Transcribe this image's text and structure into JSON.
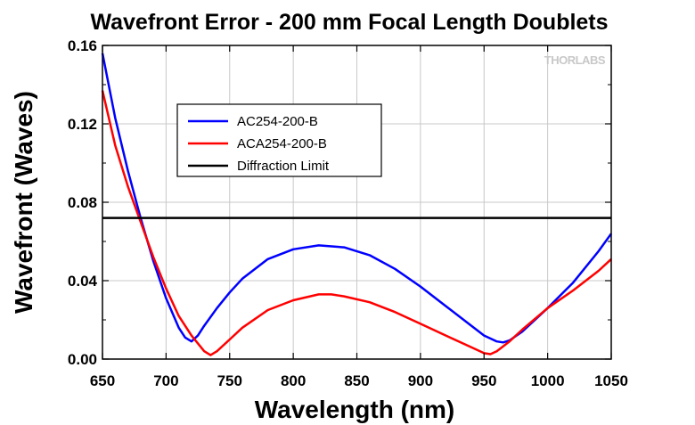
{
  "chart_data": {
    "type": "line",
    "title": "Wavefront Error - 200 mm Focal Length Doublets",
    "xlabel": "Wavelength (nm)",
    "ylabel": "Wavefront (Waves)",
    "xlim": [
      650,
      1050
    ],
    "ylim": [
      0,
      0.16
    ],
    "xticks": [
      650,
      700,
      750,
      800,
      850,
      900,
      950,
      1000,
      1050
    ],
    "yticks": [
      "0.00",
      "0.04",
      "0.08",
      "0.12",
      "0.16"
    ],
    "grid": true,
    "legend_position": "upper-left-inside",
    "watermark": "THORLABS",
    "series": [
      {
        "name": "AC254-200-B",
        "color": "#0000ff",
        "x": [
          650,
          660,
          670,
          680,
          690,
          700,
          710,
          715,
          720,
          725,
          730,
          740,
          750,
          760,
          780,
          800,
          820,
          840,
          860,
          880,
          900,
          920,
          940,
          950,
          960,
          965,
          970,
          980,
          1000,
          1020,
          1040,
          1050
        ],
        "y": [
          0.156,
          0.123,
          0.096,
          0.072,
          0.05,
          0.031,
          0.016,
          0.011,
          0.009,
          0.012,
          0.017,
          0.026,
          0.034,
          0.041,
          0.051,
          0.056,
          0.058,
          0.057,
          0.053,
          0.046,
          0.037,
          0.027,
          0.017,
          0.012,
          0.009,
          0.0085,
          0.0095,
          0.014,
          0.026,
          0.039,
          0.055,
          0.064
        ]
      },
      {
        "name": "ACA254-200-B",
        "color": "#ff0000",
        "x": [
          650,
          660,
          670,
          680,
          690,
          700,
          710,
          720,
          730,
          735,
          740,
          750,
          760,
          780,
          800,
          820,
          830,
          840,
          860,
          880,
          900,
          920,
          940,
          950,
          955,
          960,
          970,
          980,
          1000,
          1020,
          1040,
          1050
        ],
        "y": [
          0.137,
          0.109,
          0.088,
          0.07,
          0.052,
          0.036,
          0.022,
          0.012,
          0.004,
          0.002,
          0.004,
          0.01,
          0.016,
          0.025,
          0.03,
          0.033,
          0.033,
          0.032,
          0.029,
          0.024,
          0.018,
          0.012,
          0.006,
          0.003,
          0.0025,
          0.004,
          0.009,
          0.015,
          0.026,
          0.035,
          0.045,
          0.051
        ]
      },
      {
        "name": "Diffraction Limit",
        "color": "#000000",
        "x": [
          650,
          1050
        ],
        "y": [
          0.072,
          0.072
        ]
      }
    ]
  }
}
